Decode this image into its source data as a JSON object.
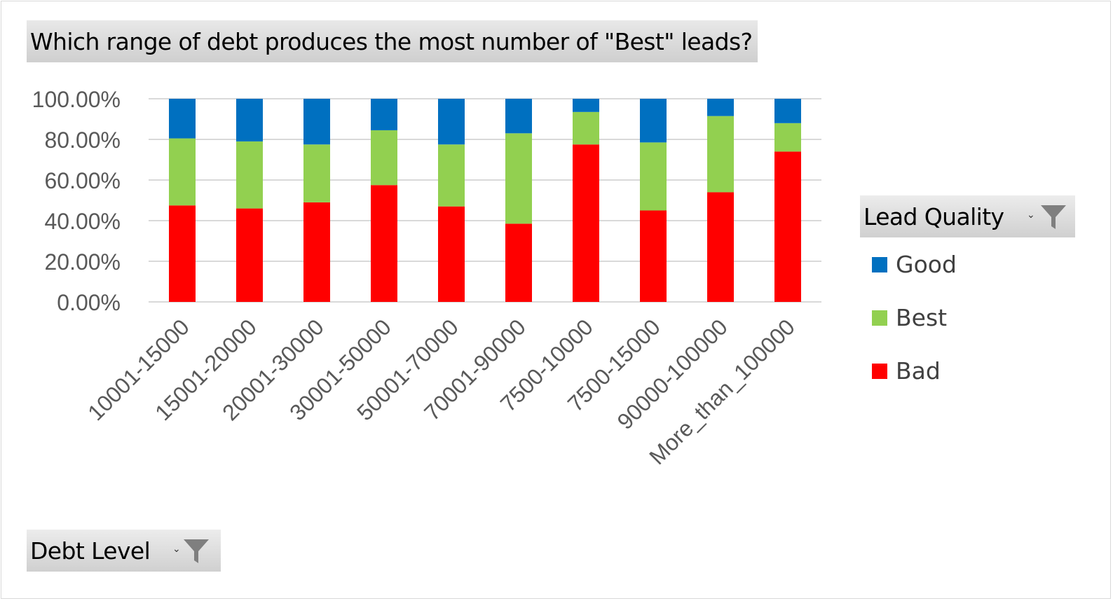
{
  "chart_data": {
    "type": "bar",
    "stacked": true,
    "title": "Which range of debt produces the most number of \"Best\" leads?",
    "categories": [
      "10001-15000",
      "15001-20000",
      "20001-30000",
      "30001-50000",
      "50001-70000",
      "70001-90000",
      "7500-10000",
      "7500-15000",
      "90000-100000",
      "More_than_100000"
    ],
    "series": [
      {
        "name": "Bad",
        "color": "#ff0000",
        "values": [
          47.5,
          46.0,
          49.0,
          57.5,
          47.0,
          38.5,
          77.5,
          45.0,
          54.0,
          74.0
        ]
      },
      {
        "name": "Best",
        "color": "#92d050",
        "values": [
          33.0,
          33.0,
          28.5,
          27.0,
          30.5,
          44.5,
          16.0,
          33.5,
          37.5,
          14.0
        ]
      },
      {
        "name": "Good",
        "color": "#0070c0",
        "values": [
          19.5,
          21.0,
          22.5,
          15.5,
          22.5,
          17.0,
          6.5,
          21.5,
          8.5,
          12.0
        ]
      }
    ],
    "yticks": [
      "0.00%",
      "20.00%",
      "40.00%",
      "60.00%",
      "80.00%",
      "100.00%"
    ],
    "ylim": [
      0,
      100
    ],
    "grid": true,
    "legend_title": "Lead Quality",
    "legend_placement": "right",
    "legend_order": [
      "Good",
      "Best",
      "Bad"
    ]
  },
  "axis_field": {
    "label": "Debt Level",
    "dropdown_glyph": "⌄",
    "icon": "filter-icon"
  },
  "legend_field": {
    "label": "Lead Quality",
    "dropdown_glyph": "⌄",
    "icon": "filter-icon"
  },
  "legend_items": [
    {
      "name": "Good",
      "color": "#0070c0"
    },
    {
      "name": "Best",
      "color": "#92d050"
    },
    {
      "name": "Bad",
      "color": "#ff0000"
    }
  ]
}
